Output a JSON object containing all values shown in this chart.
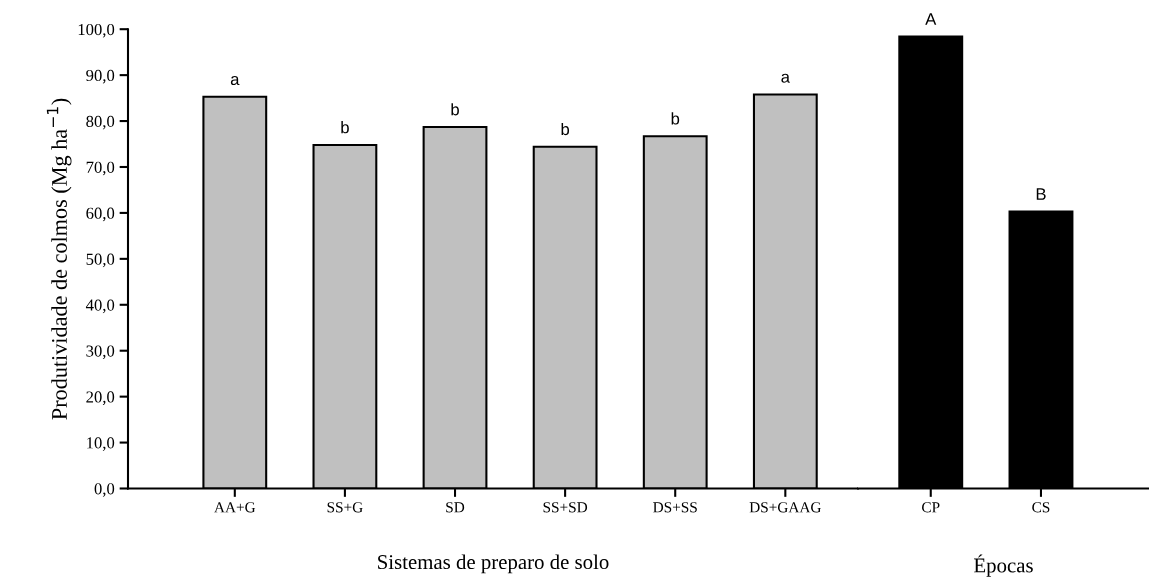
{
  "chart_data": [
    {
      "type": "bar",
      "xlabel": "Sistemas de preparo de solo",
      "ylabel": "Produtividade de colmos (Mg ha$^{−1}$)",
      "categories": [
        "AA+G",
        "SS+G",
        "SD",
        "SS+SD",
        "DS+SS",
        "DS+GAAG"
      ],
      "values": [
        85.3,
        74.8,
        78.7,
        74.4,
        76.7,
        85.8
      ],
      "color": "#c0c0c0",
      "value_labels": [
        "a",
        "b",
        "b",
        "b",
        "b",
        "a"
      ],
      "ylim": [
        0,
        100
      ],
      "yticks": [
        {
          "value": 0,
          "label": "0,0"
        },
        {
          "value": 10,
          "label": "10,0"
        },
        {
          "value": 20,
          "label": "20,0"
        },
        {
          "value": 30,
          "label": "30,0"
        },
        {
          "value": 40,
          "label": "40,0"
        },
        {
          "value": 50,
          "label": "50,0"
        },
        {
          "value": 60,
          "label": "60,0"
        },
        {
          "value": 70,
          "label": "70,0"
        },
        {
          "value": 80,
          "label": "80,0"
        },
        {
          "value": 90,
          "label": "90,0"
        },
        {
          "value": 100,
          "label": "100,0"
        }
      ],
      "grid": false,
      "legend": false
    },
    {
      "type": "bar",
      "xlabel": "Épocas",
      "categories": [
        "CP",
        "CS"
      ],
      "values": [
        98.4,
        60.3
      ],
      "color": "#000000",
      "value_labels": [
        "A",
        "B"
      ],
      "ylim": [
        0,
        100
      ],
      "tick_labels": "x",
      "grid": false,
      "legend": false
    }
  ]
}
